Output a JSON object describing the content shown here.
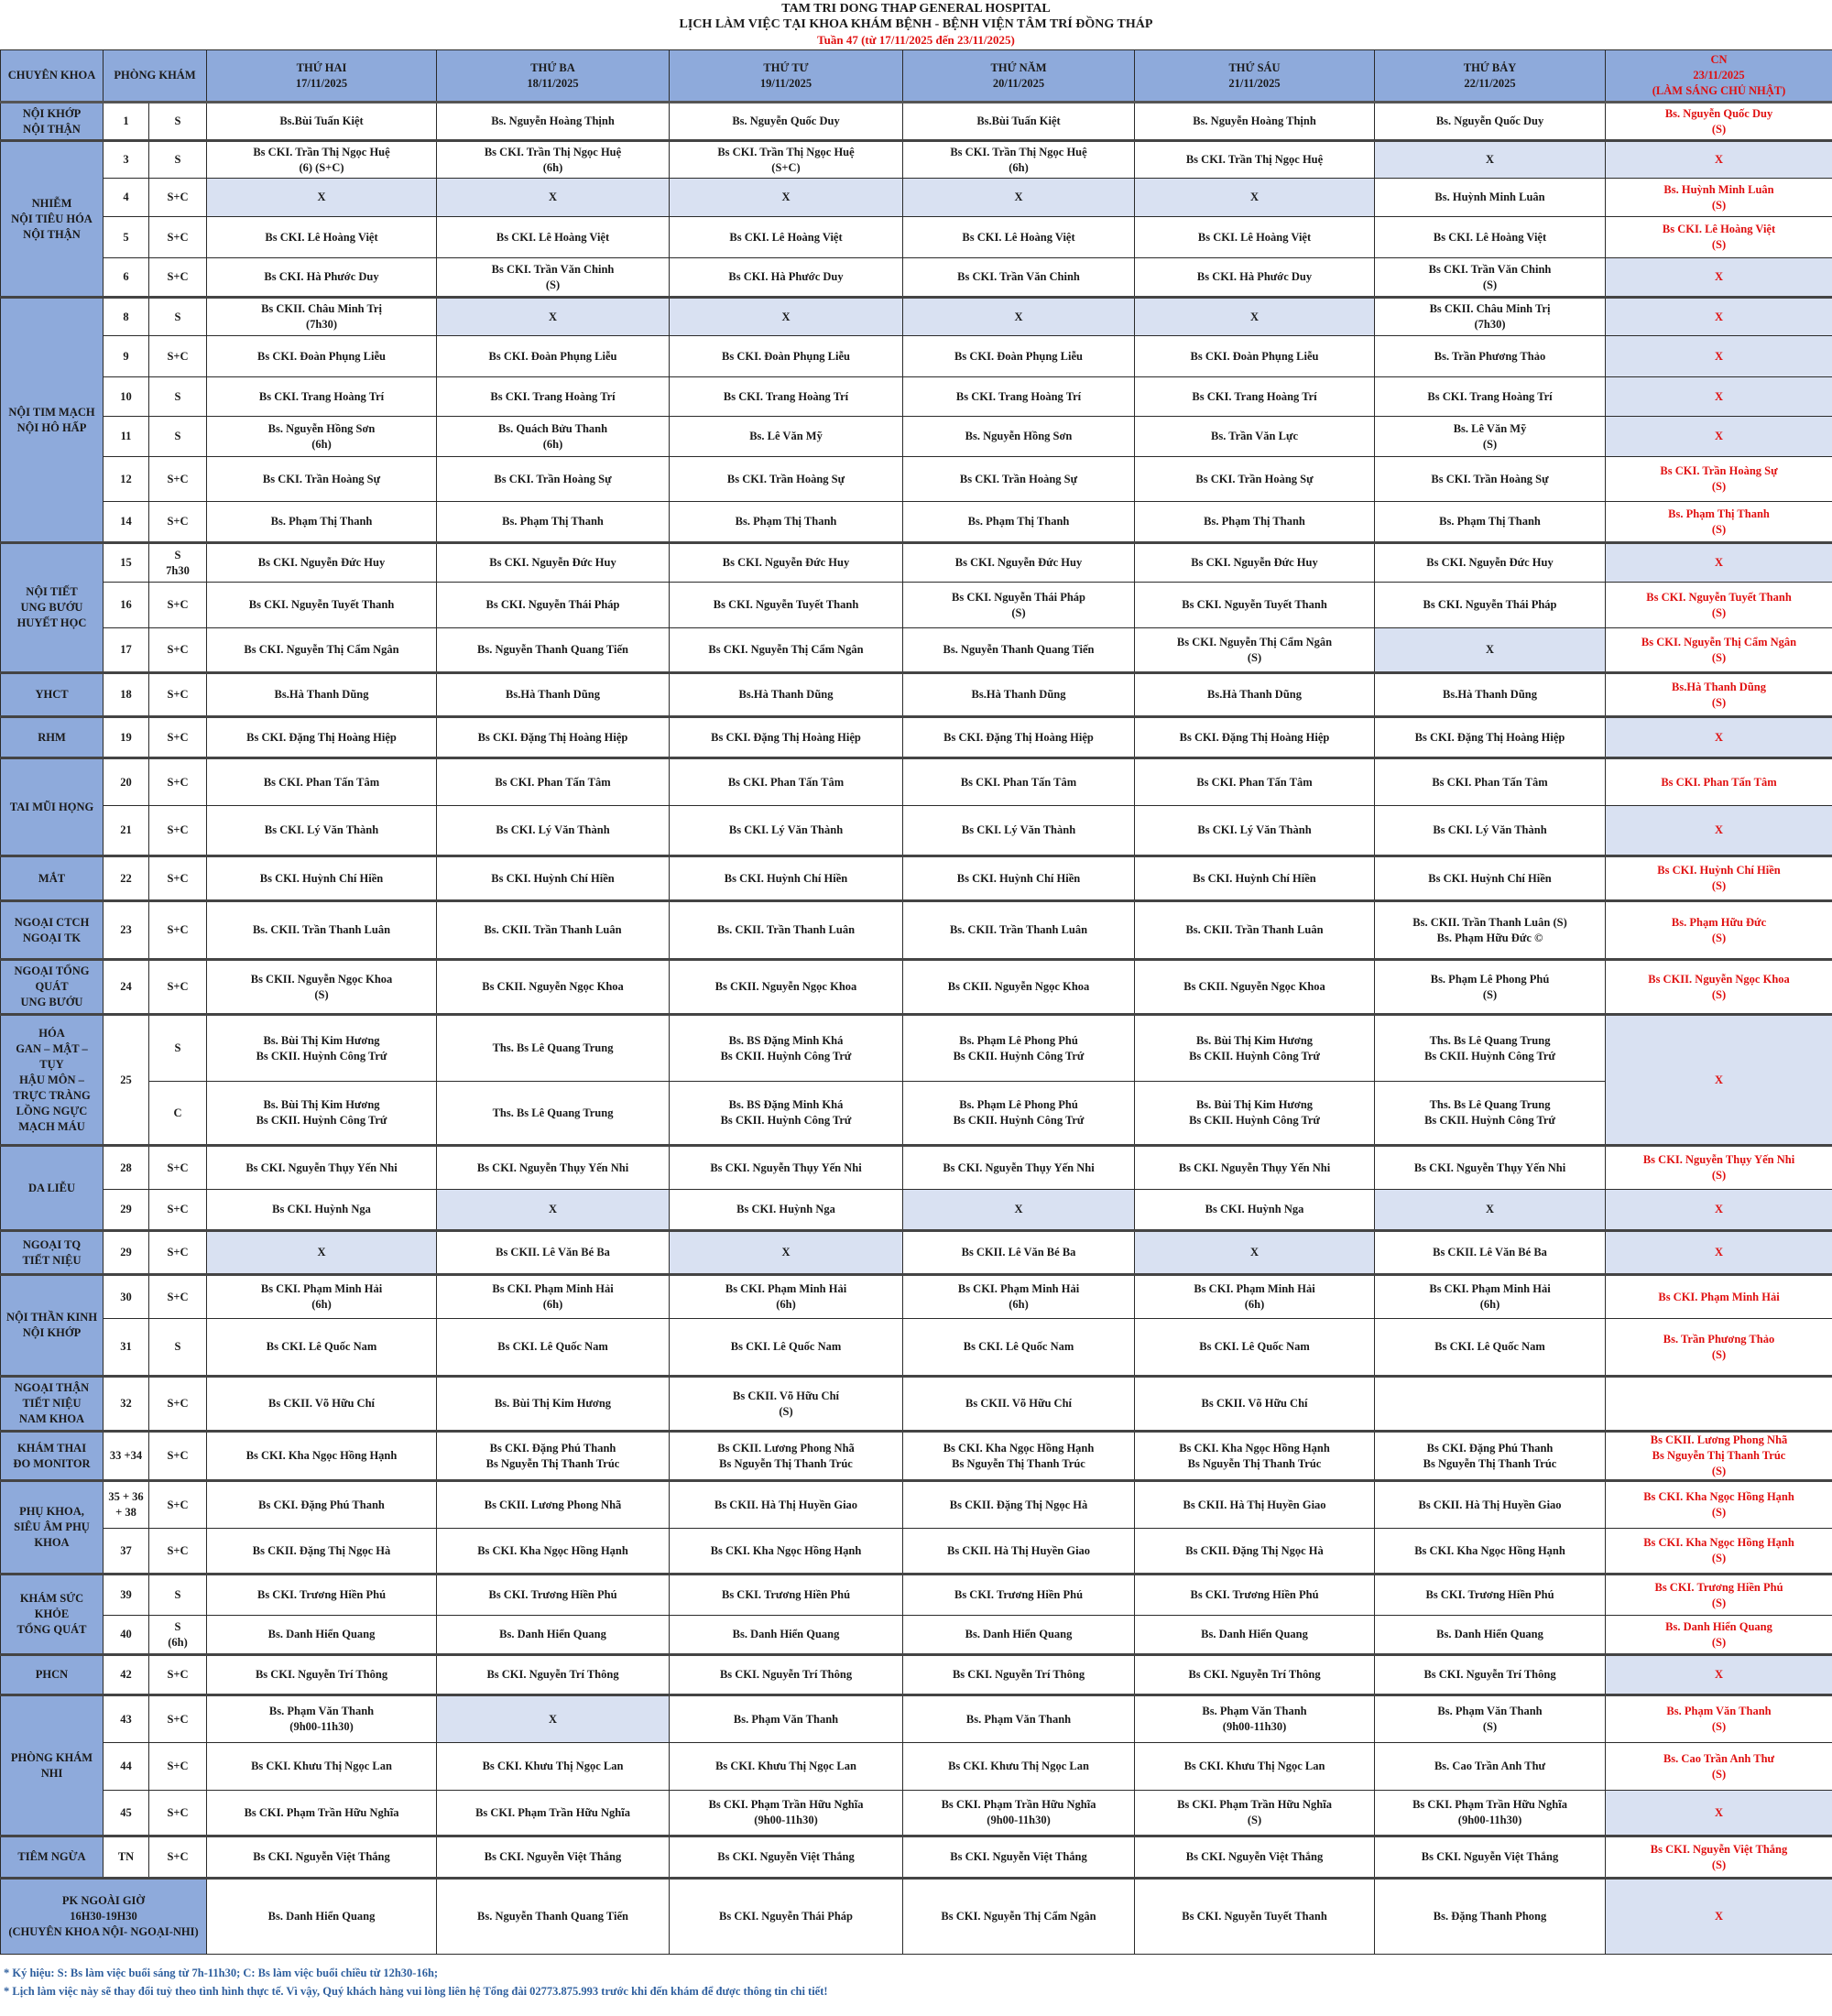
{
  "header": {
    "hospital": "TAM TRI DONG THAP GENERAL HOSPITAL",
    "title": "LỊCH LÀM VIỆC TẠI KHOA KHÁM BỆNH - BỆNH VIỆN TÂM TRÍ ĐỒNG THÁP",
    "week": "Tuần 47 (từ 17/11/2025 đến 23/11/2025)"
  },
  "columns": {
    "specialty": "CHUYÊN KHOA",
    "room": "PHÒNG KHÁM",
    "days": [
      "THỨ HAI\n17/11/2025",
      "THỨ BA\n18/11/2025",
      "THỨ TƯ\n19/11/2025",
      "THỨ NĂM\n20/11/2025",
      "THỨ SÁU\n21/11/2025",
      "THỨ BẢY\n22/11/2025",
      "CN\n23/11/2025\n(LÀM SÁNG CHỦ NHẬT)"
    ]
  },
  "colors": {
    "header_bg": "#8eaadb",
    "closed_bg": "#d9e1f2",
    "sunday_text": "#e01010",
    "note_text": "#2e5f9e"
  },
  "groups": [
    {
      "name": "NỘI KHỚP\nNỘI THẬN",
      "rows": [
        {
          "room": "1",
          "session": "S",
          "cells": [
            "Bs.Bùi Tuấn Kiệt",
            "Bs. Nguyễn Hoàng Thịnh",
            "Bs. Nguyễn Quốc Duy",
            "Bs.Bùi Tuấn Kiệt",
            "Bs. Nguyễn Hoàng Thịnh",
            "Bs. Nguyễn Quốc Duy",
            "Bs. Nguyễn Quốc Duy\n(S)"
          ]
        }
      ]
    },
    {
      "name": "NHIỄM\nNỘI TIÊU HÓA\nNỘI THẬN",
      "rows": [
        {
          "room": "3",
          "session": "S",
          "cells": [
            "Bs CKI. Trần Thị Ngọc Huệ\n(6) (S+C)",
            "Bs CKI. Trần Thị Ngọc Huệ\n(6h)",
            "Bs CKI. Trần Thị Ngọc Huệ\n(S+C)",
            "Bs CKI. Trần Thị Ngọc Huệ\n(6h)",
            "Bs CKI. Trần Thị Ngọc Huệ",
            "X",
            "X"
          ]
        },
        {
          "room": "4",
          "session": "S+C",
          "cells": [
            "X",
            "X",
            "X",
            "X",
            "X",
            "Bs. Huỳnh Minh Luân",
            "Bs. Huỳnh Minh Luân\n(S)"
          ]
        },
        {
          "room": "5",
          "session": "S+C",
          "cells": [
            "Bs CKI. Lê Hoàng Việt",
            "Bs CKI. Lê Hoàng Việt",
            "Bs CKI. Lê Hoàng Việt",
            "Bs CKI. Lê Hoàng Việt",
            "Bs CKI. Lê Hoàng Việt",
            "Bs CKI. Lê Hoàng Việt",
            "Bs CKI. Lê Hoàng Việt\n(S)"
          ]
        },
        {
          "room": "6",
          "session": "S+C",
          "cells": [
            "Bs CKI. Hà Phước Duy",
            "Bs CKI. Trần Văn Chinh\n(S)",
            "Bs CKI. Hà Phước Duy",
            "Bs CKI. Trần Văn Chinh",
            "Bs CKI. Hà Phước Duy",
            "Bs CKI. Trần Văn Chinh\n(S)",
            "X"
          ]
        }
      ]
    },
    {
      "name": "NỘI TIM MẠCH\nNỘI HÔ HẤP",
      "rows": [
        {
          "room": "8",
          "session": "S",
          "cells": [
            "Bs CKII. Châu Minh Trị\n(7h30)",
            "X",
            "X",
            "X",
            "X",
            "Bs CKII. Châu Minh Trị\n(7h30)",
            "X"
          ]
        },
        {
          "room": "9",
          "session": "S+C",
          "cells": [
            "Bs CKI. Đoàn Phụng Liễu",
            "Bs CKI. Đoàn Phụng Liễu",
            "Bs CKI. Đoàn Phụng Liễu",
            "Bs CKI. Đoàn Phụng Liễu",
            "Bs CKI. Đoàn Phụng Liễu",
            "Bs. Trần Phương Thảo",
            "X"
          ]
        },
        {
          "room": "10",
          "session": "S",
          "cells": [
            "Bs CKI. Trang Hoàng Trí",
            "Bs CKI. Trang Hoàng Trí",
            "Bs CKI. Trang Hoàng Trí",
            "Bs CKI. Trang Hoàng Trí",
            "Bs CKI. Trang Hoàng Trí",
            "Bs CKI. Trang Hoàng Trí",
            "X"
          ]
        },
        {
          "room": "11",
          "session": "S",
          "cells": [
            "Bs. Nguyễn Hồng Sơn\n(6h)",
            "Bs. Quách Bửu Thanh\n(6h)",
            "Bs. Lê Văn Mỹ",
            "Bs. Nguyễn Hồng Sơn",
            "Bs. Trần Văn Lực",
            "Bs. Lê Văn Mỹ\n(S)",
            "X"
          ]
        },
        {
          "room": "12",
          "session": "S+C",
          "cells": [
            "Bs CKI. Trần Hoàng Sự",
            "Bs CKI. Trần Hoàng Sự",
            "Bs CKI. Trần Hoàng Sự",
            "Bs CKI. Trần Hoàng Sự",
            "Bs CKI. Trần Hoàng Sự",
            "Bs CKI. Trần Hoàng Sự",
            "Bs CKI. Trần Hoàng Sự\n(S)"
          ]
        },
        {
          "room": "14",
          "session": "S+C",
          "cells": [
            "Bs. Phạm Thị Thanh",
            "Bs. Phạm Thị Thanh",
            "Bs. Phạm Thị Thanh",
            "Bs. Phạm Thị Thanh",
            "Bs. Phạm Thị Thanh",
            "Bs. Phạm Thị Thanh",
            "Bs. Phạm Thị Thanh\n(S)"
          ]
        }
      ]
    },
    {
      "name": "NỘI TIẾT\nUNG BƯỚU\nHUYẾT HỌC",
      "rows": [
        {
          "room": "15",
          "session": "S\n7h30",
          "cells": [
            "Bs CKI. Nguyễn Đức Huy",
            "Bs CKI. Nguyễn Đức Huy",
            "Bs CKI. Nguyễn Đức Huy",
            "Bs CKI. Nguyễn Đức Huy",
            "Bs CKI. Nguyễn Đức Huy",
            "Bs CKI. Nguyễn Đức Huy",
            "X"
          ]
        },
        {
          "room": "16",
          "session": "S+C",
          "cells": [
            "Bs CKI. Nguyễn Tuyết Thanh",
            "Bs CKI. Nguyễn Thái Pháp",
            "Bs CKI. Nguyễn Tuyết Thanh",
            "Bs CKI. Nguyễn Thái Pháp\n(S)",
            "Bs CKI. Nguyễn Tuyết Thanh",
            "Bs CKI. Nguyễn Thái Pháp",
            "Bs CKI. Nguyễn Tuyết Thanh\n(S)"
          ]
        },
        {
          "room": "17",
          "session": "S+C",
          "cells": [
            "Bs CKI. Nguyễn Thị Cẩm Ngân",
            "Bs. Nguyễn Thanh Quang Tiến",
            "Bs CKI. Nguyễn Thị Cẩm Ngân",
            "Bs. Nguyễn Thanh Quang Tiến",
            "Bs CKI. Nguyễn Thị Cẩm Ngân\n(S)",
            "X",
            "Bs CKI. Nguyễn Thị Cẩm Ngân\n(S)"
          ]
        }
      ]
    },
    {
      "name": "YHCT",
      "rows": [
        {
          "room": "18",
          "session": "S+C",
          "cells": [
            "Bs.Hà Thanh Dũng",
            "Bs.Hà Thanh Dũng",
            "Bs.Hà Thanh Dũng",
            "Bs.Hà Thanh Dũng",
            "Bs.Hà Thanh Dũng",
            "Bs.Hà Thanh Dũng",
            "Bs.Hà Thanh Dũng\n(S)"
          ]
        }
      ]
    },
    {
      "name": "RHM",
      "rows": [
        {
          "room": "19",
          "session": "S+C",
          "cells": [
            "Bs CKI. Đặng Thị Hoàng Hiệp",
            "Bs CKI. Đặng Thị Hoàng Hiệp",
            "Bs CKI. Đặng Thị Hoàng Hiệp",
            "Bs CKI. Đặng Thị Hoàng Hiệp",
            "Bs CKI. Đặng Thị Hoàng Hiệp",
            "Bs CKI. Đặng Thị Hoàng Hiệp",
            "X"
          ]
        }
      ]
    },
    {
      "name": "TAI MŨI HỌNG",
      "rows": [
        {
          "room": "20",
          "session": "S+C",
          "cells": [
            "Bs CKI. Phan Tấn Tâm",
            "Bs CKI. Phan Tấn Tâm",
            "Bs CKI. Phan Tấn Tâm",
            "Bs CKI. Phan Tấn Tâm",
            "Bs CKI. Phan Tấn Tâm",
            "Bs CKI. Phan Tấn Tâm",
            "Bs CKI. Phan Tấn Tâm"
          ]
        },
        {
          "room": "21",
          "session": "S+C",
          "cells": [
            "Bs CKI. Lý Văn Thành",
            "Bs CKI. Lý Văn Thành",
            "Bs CKI. Lý Văn Thành",
            "Bs CKI. Lý Văn Thành",
            "Bs CKI. Lý Văn Thành",
            "Bs CKI. Lý Văn Thành",
            "X"
          ]
        }
      ]
    },
    {
      "name": "MẮT",
      "rows": [
        {
          "room": "22",
          "session": "S+C",
          "cells": [
            "Bs CKI. Huỳnh Chí Hiền",
            "Bs CKI. Huỳnh Chí Hiền",
            "Bs CKI. Huỳnh Chí Hiền",
            "Bs CKI. Huỳnh Chí Hiền",
            "Bs CKI. Huỳnh Chí Hiền",
            "Bs CKI. Huỳnh Chí Hiền",
            "Bs CKI. Huỳnh Chí Hiền\n(S)"
          ]
        }
      ]
    },
    {
      "name": "NGOẠI CTCH\nNGOẠI TK",
      "rows": [
        {
          "room": "23",
          "session": "S+C",
          "cells": [
            "Bs. CKII. Trần Thanh Luân",
            "Bs. CKII. Trần Thanh Luân",
            "Bs. CKII. Trần Thanh Luân",
            "Bs. CKII. Trần Thanh Luân",
            "Bs. CKII. Trần Thanh Luân",
            "Bs. CKII. Trần Thanh Luân (S)\nBs. Phạm Hữu Đức ©",
            "Bs. Phạm Hữu Đức\n(S)"
          ]
        }
      ]
    },
    {
      "name": "NGOẠI TỔNG\nQUÁT\nUNG BƯỚU",
      "rows": [
        {
          "room": "24",
          "session": "S+C",
          "cells": [
            "Bs CKII. Nguyễn Ngọc Khoa\n(S)",
            "Bs CKII. Nguyễn Ngọc Khoa",
            "Bs CKII. Nguyễn Ngọc Khoa",
            "Bs CKII. Nguyễn Ngọc Khoa",
            "Bs CKII. Nguyễn Ngọc Khoa",
            "Bs. Phạm Lê Phong Phú\n(S)",
            "Bs CKII. Nguyễn Ngọc Khoa\n(S)"
          ]
        }
      ]
    },
    {
      "name": "HÓA\nGAN – MẬT –\nTỤY\nHẬU MÔN –\nTRỰC TRÀNG\nLỒNG NGỰC\nMẠCH MÁU",
      "rows": [
        {
          "room": "25",
          "session": "S",
          "cells": [
            "Bs. Bùi Thị Kim Hương\nBs CKII. Huỳnh Công Trứ",
            "Ths. Bs Lê Quang Trung",
            "Bs. BS Đặng Minh Khá\nBs CKII. Huỳnh Công Trứ",
            "Bs. Phạm Lê Phong Phú\nBs CKII. Huỳnh Công Trứ",
            "Bs. Bùi Thị Kim Hương\nBs CKII. Huỳnh Công Trứ",
            "Ths. Bs Lê Quang Trung\nBs CKII. Huỳnh Công Trứ",
            "X"
          ]
        },
        {
          "room": null,
          "session": "C",
          "cells": [
            "Bs. Bùi Thị Kim Hương\nBs CKII. Huỳnh Công Trứ",
            "Ths. Bs Lê Quang Trung",
            "Bs. BS Đặng Minh Khá\nBs CKII. Huỳnh Công Trứ",
            "Bs. Phạm Lê Phong Phú\nBs CKII. Huỳnh Công Trứ",
            "Bs. Bùi Thị Kim Hương\nBs CKII. Huỳnh Công Trứ",
            "Ths. Bs Lê Quang Trung\nBs CKII. Huỳnh Công Trứ",
            null
          ]
        }
      ]
    },
    {
      "name": "DA LIỄU",
      "rows": [
        {
          "room": "28",
          "session": "S+C",
          "cells": [
            "Bs CKI. Nguyễn Thụy Yến Nhi",
            "Bs CKI. Nguyễn Thụy Yến Nhi",
            "Bs CKI. Nguyễn Thụy Yến Nhi",
            "Bs CKI. Nguyễn Thụy Yến Nhi",
            "Bs CKI. Nguyễn Thụy Yến Nhi",
            "Bs CKI. Nguyễn Thụy Yến Nhi",
            "Bs CKI. Nguyễn Thụy Yến Nhi\n(S)"
          ]
        },
        {
          "room": "29",
          "session": "S+C",
          "cells": [
            "Bs CKI. Huỳnh Nga",
            "X",
            "Bs CKI. Huỳnh Nga",
            "X",
            "Bs CKI. Huỳnh Nga",
            "X",
            "X"
          ]
        }
      ]
    },
    {
      "name": "NGOẠI TQ\nTIẾT NIỆU",
      "rows": [
        {
          "room": "29",
          "session": "S+C",
          "cells": [
            "X",
            "Bs CKII. Lê Văn Bé Ba",
            "X",
            "Bs CKII. Lê Văn Bé Ba",
            "X",
            "Bs CKII. Lê Văn Bé Ba",
            "X"
          ]
        }
      ]
    },
    {
      "name": "NỘI THẦN KINH\nNỘI KHỚP",
      "rows": [
        {
          "room": "30",
          "session": "S+C",
          "cells": [
            "Bs CKI. Phạm Minh Hải\n(6h)",
            "Bs CKI. Phạm Minh Hải\n(6h)",
            "Bs CKI. Phạm Minh Hải\n(6h)",
            "Bs CKI. Phạm Minh Hải\n(6h)",
            "Bs CKI. Phạm Minh Hải\n(6h)",
            "Bs CKI. Phạm Minh Hải\n(6h)",
            "Bs CKI. Phạm Minh Hải"
          ]
        },
        {
          "room": "31",
          "session": "S",
          "cells": [
            "Bs CKI. Lê Quốc Nam",
            "Bs CKI. Lê Quốc Nam",
            "Bs CKI. Lê Quốc Nam",
            "Bs CKI. Lê Quốc Nam",
            "Bs CKI. Lê Quốc Nam",
            "Bs CKI. Lê Quốc Nam",
            "Bs. Trần Phương Thảo\n(S)"
          ]
        }
      ]
    },
    {
      "name": "NGOẠI THẬN\nTIẾT NIỆU\nNAM KHOA",
      "rows": [
        {
          "room": "32",
          "session": "S+C",
          "cells": [
            "Bs CKII. Võ Hữu Chí",
            "Bs. Bùi Thị Kim Hương",
            "Bs CKII. Võ Hữu Chí\n(S)",
            "Bs CKII. Võ Hữu Chí",
            "Bs CKII. Võ Hữu Chí",
            "",
            ""
          ]
        }
      ]
    },
    {
      "name": "KHÁM THAI\nĐO MONITOR",
      "rows": [
        {
          "room": "33 +34",
          "session": "S+C",
          "cells": [
            "Bs CKI. Kha Ngọc Hồng Hạnh",
            "Bs CKI. Đặng Phú Thanh\nBs Nguyễn Thị Thanh Trúc",
            "Bs CKII. Lương Phong Nhã\nBs Nguyễn Thị Thanh Trúc",
            "Bs CKI. Kha Ngọc Hồng Hạnh\nBs Nguyễn Thị Thanh Trúc",
            "Bs CKI. Kha Ngọc Hồng Hạnh\nBs Nguyễn Thị Thanh Trúc",
            "Bs CKI. Đặng Phú Thanh\nBs Nguyễn Thị Thanh Trúc",
            "Bs CKII. Lương Phong Nhã\nBs Nguyễn Thị Thanh Trúc\n(S)"
          ]
        }
      ]
    },
    {
      "name": "PHỤ KHOA,\nSIÊU ÂM PHỤ\nKHOA",
      "rows": [
        {
          "room": "35 + 36\n+ 38",
          "session": "S+C",
          "cells": [
            "Bs CKI. Đặng Phú Thanh",
            "Bs CKII. Lương Phong Nhã",
            "Bs CKII. Hà Thị Huyền Giao",
            "Bs CKII. Đặng Thị Ngọc Hà",
            "Bs CKII. Hà Thị Huyền Giao",
            "Bs CKII. Hà Thị Huyền Giao",
            "Bs CKI. Kha Ngọc Hồng Hạnh\n(S)"
          ]
        },
        {
          "room": "37",
          "session": "S+C",
          "cells": [
            "Bs CKII. Đặng Thị Ngọc Hà",
            "Bs CKI. Kha Ngọc Hồng Hạnh",
            "Bs CKI. Kha Ngọc Hồng Hạnh",
            "Bs CKII. Hà Thị Huyền Giao",
            "Bs CKII. Đặng Thị Ngọc Hà",
            "Bs CKI. Kha Ngọc Hồng Hạnh",
            "Bs CKI. Kha Ngọc Hồng Hạnh\n(S)"
          ]
        }
      ]
    },
    {
      "name": "KHÁM SỨC\nKHỎE\nTỔNG QUÁT",
      "rows": [
        {
          "room": "39",
          "session": "S",
          "cells": [
            "Bs CKI. Trương Hiền Phú",
            "Bs CKI. Trương Hiền Phú",
            "Bs CKI. Trương Hiền Phú",
            "Bs CKI. Trương Hiền Phú",
            "Bs CKI. Trương Hiền Phú",
            "Bs CKI. Trương Hiền Phú",
            "Bs CKI. Trương Hiền Phú\n(S)"
          ]
        },
        {
          "room": "40",
          "session": "S\n(6h)",
          "cells": [
            "Bs. Danh Hiển Quang",
            "Bs. Danh Hiển Quang",
            "Bs. Danh Hiển Quang",
            "Bs. Danh Hiển Quang",
            "Bs. Danh Hiển Quang",
            "Bs. Danh Hiển Quang",
            "Bs. Danh Hiển Quang\n(S)"
          ]
        }
      ]
    },
    {
      "name": "PHCN",
      "rows": [
        {
          "room": "42",
          "session": "S+C",
          "cells": [
            "Bs CKI. Nguyễn Trí Thông",
            "Bs CKI. Nguyễn Trí Thông",
            "Bs CKI. Nguyễn Trí Thông",
            "Bs CKI. Nguyễn Trí Thông",
            "Bs CKI. Nguyễn Trí Thông",
            "Bs CKI. Nguyễn Trí Thông",
            "X"
          ]
        }
      ]
    },
    {
      "name": "PHÒNG KHÁM\nNHI",
      "rows": [
        {
          "room": "43",
          "session": "S+C",
          "cells": [
            "Bs. Phạm Văn Thanh\n(9h00-11h30)",
            "X",
            "Bs. Phạm Văn Thanh",
            "Bs. Phạm Văn Thanh",
            "Bs. Phạm Văn Thanh\n(9h00-11h30)",
            "Bs. Phạm Văn Thanh\n(S)",
            "Bs. Phạm Văn Thanh\n(S)"
          ]
        },
        {
          "room": "44",
          "session": "S+C",
          "cells": [
            "Bs CKI. Khưu Thị Ngọc Lan",
            "Bs CKI. Khưu Thị Ngọc Lan",
            "Bs CKI. Khưu Thị Ngọc Lan",
            "Bs CKI. Khưu Thị Ngọc Lan",
            "Bs CKI. Khưu Thị Ngọc Lan",
            "Bs. Cao Trần Anh Thư",
            "Bs. Cao Trần Anh Thư\n(S)"
          ]
        },
        {
          "room": "45",
          "session": "S+C",
          "cells": [
            "Bs CKI. Phạm Trần Hữu Nghĩa",
            "Bs CKI. Phạm Trần Hữu Nghĩa",
            "Bs CKI. Phạm Trần Hữu Nghĩa\n(9h00-11h30)",
            "Bs CKI. Phạm Trần Hữu Nghĩa\n(9h00-11h30)",
            "Bs CKI. Phạm Trần Hữu Nghĩa\n(S)",
            "Bs CKI. Phạm Trần Hữu Nghĩa\n(9h00-11h30)",
            "X"
          ]
        }
      ]
    },
    {
      "name": "TIÊM NGỪA",
      "rows": [
        {
          "room": "TN",
          "session": "S+C",
          "cells": [
            "Bs CKI. Nguyễn Việt Thắng",
            "Bs CKI. Nguyễn Việt Thắng",
            "Bs CKI. Nguyễn Việt Thắng",
            "Bs CKI. Nguyễn Việt Thắng",
            "Bs CKI. Nguyễn Việt Thắng",
            "Bs CKI. Nguyễn Việt Thắng",
            "Bs CKI. Nguyễn Việt Thắng\n(S)"
          ]
        }
      ]
    }
  ],
  "after_hours": {
    "name": "PK NGOÀI GIỜ\n16H30-19H30\n(CHUYÊN KHOA NỘI- NGOẠI-NHI)",
    "cells": [
      "Bs. Danh Hiển Quang",
      "Bs. Nguyễn Thanh Quang Tiến",
      "Bs CKI. Nguyễn Thái Pháp",
      "Bs CKI. Nguyễn Thị Cẩm Ngân",
      "Bs CKI. Nguyễn Tuyết Thanh",
      "Bs. Đặng Thanh Phong",
      "X"
    ]
  },
  "notes": [
    "* Ký hiệu: S: Bs làm việc buổi sáng từ 7h-11h30; C: Bs làm việc buổi chiều từ 12h30-16h;",
    "* Lịch làm việc này sẽ thay đổi tuỳ theo tình hình thực tế. Vì vậy, Quý khách hàng vui lòng liên hệ Tổng đài 02773.875.993 trước khi đến khám để được thông tin chi tiết!"
  ]
}
